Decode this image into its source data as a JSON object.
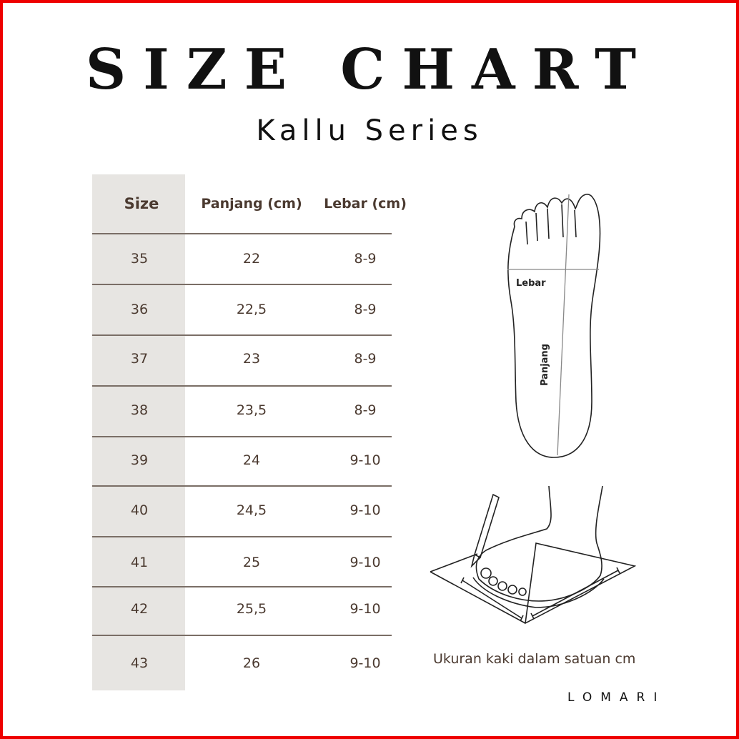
{
  "title": "SIZE CHART",
  "subtitle": "Kallu Series",
  "table": {
    "headers": [
      "Size",
      "Panjang (cm)",
      "Lebar (cm)"
    ],
    "rows": [
      [
        "35",
        "22",
        "8-9"
      ],
      [
        "36",
        "22,5",
        "8-9"
      ],
      [
        "37",
        "23",
        "8-9"
      ],
      [
        "38",
        "23,5",
        "8-9"
      ],
      [
        "39",
        "24",
        "9-10"
      ],
      [
        "40",
        "24,5",
        "9-10"
      ],
      [
        "41",
        "25",
        "9-10"
      ],
      [
        "42",
        "25,5",
        "9-10"
      ],
      [
        "43",
        "26",
        "9-10"
      ]
    ]
  },
  "diagram": {
    "width_label": "Lebar",
    "length_label": "Panjang"
  },
  "caption": "Ukuran kaki dalam satuan cm",
  "logo": "LOMARI",
  "colors": {
    "border": "#ee0000",
    "text": "#4b3a30",
    "size_column": "#e7e5e2"
  }
}
